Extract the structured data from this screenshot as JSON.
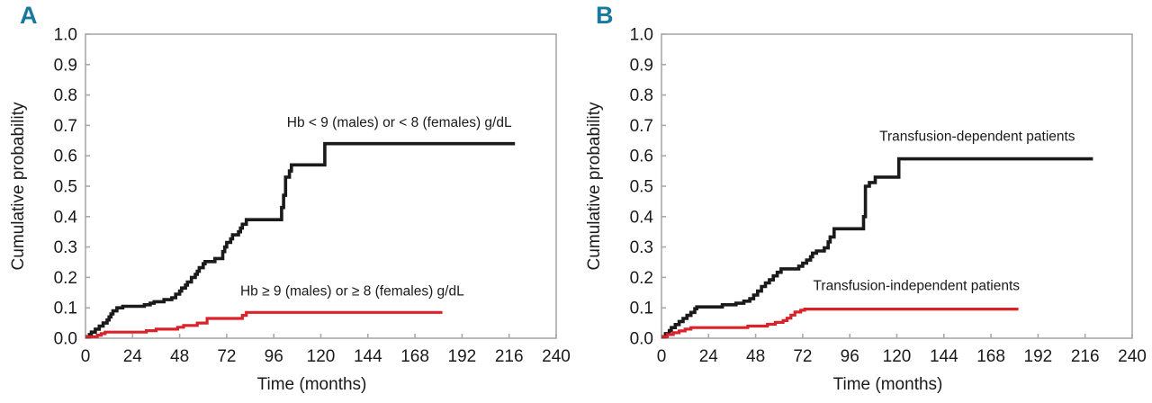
{
  "colors": {
    "frame": "#a7a9ab",
    "tick": "#a7a9ab",
    "text": "#1a1a1a",
    "panel_label": "#1878a0",
    "series_black": "#1a1a1a",
    "series_red": "#d8232a"
  },
  "chart_data": [
    {
      "type": "line",
      "subtype": "step-after",
      "panel_label": "A",
      "xlabel": "Time (months)",
      "ylabel": "Cumulative probability",
      "xlim": [
        0,
        240
      ],
      "ylim": [
        0.0,
        1.0
      ],
      "grid": false,
      "legend_position": "inline-labels",
      "x_ticks": [
        0,
        24,
        48,
        72,
        96,
        120,
        144,
        168,
        192,
        216,
        240
      ],
      "y_ticks": [
        "0.0",
        "0.1",
        "0.2",
        "0.3",
        "0.4",
        "0.5",
        "0.6",
        "0.7",
        "0.8",
        "0.9",
        "1.0"
      ],
      "series": [
        {
          "name": "Hb < 9 (males) or < 8 (females) g/dL",
          "color_key": "series_black",
          "stroke_width": 3.6,
          "label_anchor": {
            "month": 160,
            "prob": 0.695
          },
          "points": [
            [
              0,
              0.005
            ],
            [
              2,
              0.012
            ],
            [
              3,
              0.02
            ],
            [
              5,
              0.03
            ],
            [
              7,
              0.04
            ],
            [
              9,
              0.05
            ],
            [
              11,
              0.06
            ],
            [
              12,
              0.07
            ],
            [
              13,
              0.08
            ],
            [
              14,
              0.09
            ],
            [
              16,
              0.1
            ],
            [
              19,
              0.105
            ],
            [
              30,
              0.11
            ],
            [
              33,
              0.115
            ],
            [
              35,
              0.12
            ],
            [
              40,
              0.127
            ],
            [
              44,
              0.133
            ],
            [
              46,
              0.145
            ],
            [
              48,
              0.155
            ],
            [
              49,
              0.165
            ],
            [
              51,
              0.175
            ],
            [
              52,
              0.185
            ],
            [
              54,
              0.2
            ],
            [
              56,
              0.21
            ],
            [
              57,
              0.22
            ],
            [
              58,
              0.232
            ],
            [
              60,
              0.245
            ],
            [
              61,
              0.252
            ],
            [
              66,
              0.262
            ],
            [
              70,
              0.285
            ],
            [
              71,
              0.3
            ],
            [
              72,
              0.315
            ],
            [
              74,
              0.327
            ],
            [
              75,
              0.34
            ],
            [
              78,
              0.35
            ],
            [
              79,
              0.362
            ],
            [
              80,
              0.375
            ],
            [
              82,
              0.39
            ],
            [
              100,
              0.43
            ],
            [
              101,
              0.47
            ],
            [
              102,
              0.53
            ],
            [
              104,
              0.55
            ],
            [
              105,
              0.57
            ],
            [
              122,
              0.64
            ],
            [
              219,
              0.64
            ]
          ]
        },
        {
          "name": "Hb ≥ 9 (males) or ≥ 8 (females) g/dL",
          "color_key": "series_red",
          "stroke_width": 3.2,
          "label_anchor": {
            "month": 136,
            "prob": 0.14
          },
          "points": [
            [
              0,
              0.005
            ],
            [
              6,
              0.01
            ],
            [
              8,
              0.015
            ],
            [
              10,
              0.02
            ],
            [
              31,
              0.025
            ],
            [
              36,
              0.03
            ],
            [
              47,
              0.036
            ],
            [
              50,
              0.042
            ],
            [
              57,
              0.05
            ],
            [
              62,
              0.065
            ],
            [
              80,
              0.075
            ],
            [
              82,
              0.085
            ],
            [
              182,
              0.085
            ]
          ]
        }
      ]
    },
    {
      "type": "line",
      "subtype": "step-after",
      "panel_label": "B",
      "xlabel": "Time (months)",
      "ylabel": "Cumulative probability",
      "xlim": [
        0,
        240
      ],
      "ylim": [
        0.0,
        1.0
      ],
      "grid": false,
      "legend_position": "inline-labels",
      "x_ticks": [
        0,
        24,
        48,
        72,
        96,
        120,
        144,
        168,
        192,
        216,
        240
      ],
      "y_ticks": [
        "0.0",
        "0.1",
        "0.2",
        "0.3",
        "0.4",
        "0.5",
        "0.6",
        "0.7",
        "0.8",
        "0.9",
        "1.0"
      ],
      "series": [
        {
          "name": "Transfusion-dependent patients",
          "color_key": "series_black",
          "stroke_width": 3.6,
          "label_anchor": {
            "month": 161,
            "prob": 0.65
          },
          "points": [
            [
              0,
              0.005
            ],
            [
              2,
              0.015
            ],
            [
              4,
              0.025
            ],
            [
              5,
              0.035
            ],
            [
              7,
              0.045
            ],
            [
              9,
              0.055
            ],
            [
              11,
              0.065
            ],
            [
              13,
              0.075
            ],
            [
              15,
              0.085
            ],
            [
              17,
              0.097
            ],
            [
              18,
              0.103
            ],
            [
              31,
              0.11
            ],
            [
              38,
              0.115
            ],
            [
              42,
              0.122
            ],
            [
              45,
              0.13
            ],
            [
              47,
              0.142
            ],
            [
              49,
              0.155
            ],
            [
              51,
              0.17
            ],
            [
              53,
              0.182
            ],
            [
              55,
              0.192
            ],
            [
              57,
              0.205
            ],
            [
              59,
              0.217
            ],
            [
              61,
              0.228
            ],
            [
              70,
              0.237
            ],
            [
              72,
              0.247
            ],
            [
              74,
              0.257
            ],
            [
              76,
              0.268
            ],
            [
              77,
              0.28
            ],
            [
              79,
              0.287
            ],
            [
              83,
              0.297
            ],
            [
              85,
              0.317
            ],
            [
              86,
              0.333
            ],
            [
              88,
              0.36
            ],
            [
              103,
              0.4
            ],
            [
              104,
              0.5
            ],
            [
              106,
              0.512
            ],
            [
              109,
              0.53
            ],
            [
              121,
              0.59
            ],
            [
              220,
              0.59
            ]
          ]
        },
        {
          "name": "Transfusion-independent patients",
          "color_key": "series_red",
          "stroke_width": 3.2,
          "label_anchor": {
            "month": 130,
            "prob": 0.158
          },
          "points": [
            [
              0,
              0.005
            ],
            [
              3,
              0.012
            ],
            [
              6,
              0.018
            ],
            [
              9,
              0.024
            ],
            [
              12,
              0.03
            ],
            [
              15,
              0.035
            ],
            [
              44,
              0.04
            ],
            [
              54,
              0.046
            ],
            [
              58,
              0.052
            ],
            [
              62,
              0.058
            ],
            [
              64,
              0.066
            ],
            [
              66,
              0.076
            ],
            [
              68,
              0.086
            ],
            [
              71,
              0.092
            ],
            [
              73,
              0.096
            ],
            [
              182,
              0.096
            ]
          ]
        }
      ]
    }
  ]
}
